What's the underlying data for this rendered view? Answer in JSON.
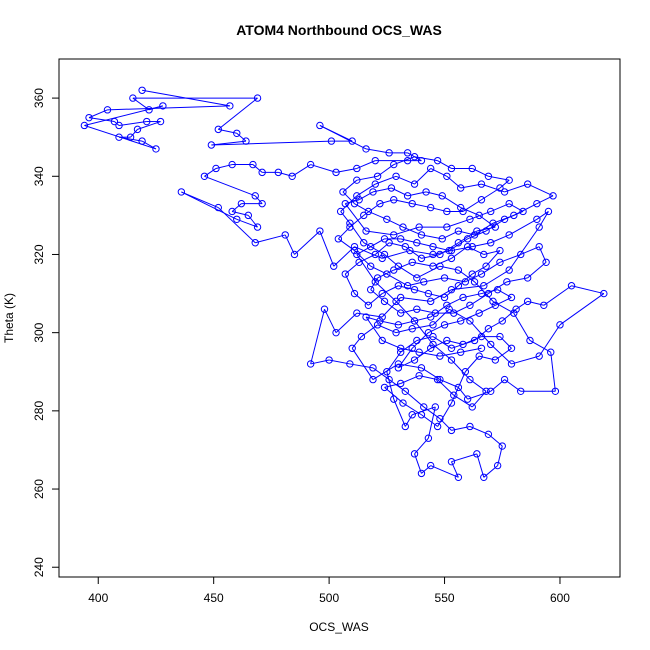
{
  "chart_data": {
    "type": "scatter",
    "title": "ATOM4 Northbound OCS_WAS",
    "xlabel": "OCS_WAS",
    "ylabel": "Theta (K)",
    "xlim": [
      383,
      626
    ],
    "ylim": [
      237.5,
      370
    ],
    "xticks": [
      400,
      450,
      500,
      550,
      600
    ],
    "yticks": [
      240,
      260,
      280,
      300,
      320,
      340,
      360
    ],
    "grid": false,
    "legend": "none",
    "color": "#0000ff",
    "marker": "open-circle",
    "connected": true,
    "series": [
      {
        "points": [
          [
            419,
            362
          ],
          [
            457,
            358
          ],
          [
            404,
            357
          ],
          [
            396,
            355
          ],
          [
            407,
            354
          ],
          [
            409,
            353
          ],
          [
            421,
            354
          ],
          [
            427,
            354
          ],
          [
            417,
            352
          ],
          [
            414,
            350
          ],
          [
            409,
            350
          ],
          [
            419,
            349
          ],
          [
            425,
            347
          ],
          [
            394,
            353
          ],
          [
            428,
            358
          ],
          [
            422,
            357
          ],
          [
            415,
            360
          ],
          [
            469,
            360
          ],
          [
            452,
            352
          ],
          [
            460,
            351
          ],
          [
            464,
            349
          ],
          [
            449,
            348
          ],
          [
            501,
            349
          ],
          [
            510,
            349
          ],
          [
            496,
            353
          ],
          [
            516,
            347
          ],
          [
            526,
            346
          ],
          [
            534,
            346
          ],
          [
            540,
            344
          ],
          [
            534,
            344
          ],
          [
            520,
            344
          ],
          [
            512,
            342
          ],
          [
            503,
            341
          ],
          [
            492,
            343
          ],
          [
            484,
            340
          ],
          [
            478,
            341
          ],
          [
            471,
            341
          ],
          [
            467,
            343
          ],
          [
            458,
            343
          ],
          [
            451,
            342
          ],
          [
            446,
            340
          ],
          [
            468,
            335
          ],
          [
            471,
            333
          ],
          [
            462,
            333
          ],
          [
            458,
            331
          ],
          [
            465,
            330
          ],
          [
            469,
            327
          ],
          [
            460,
            329
          ],
          [
            436,
            336
          ],
          [
            452,
            332
          ],
          [
            468,
            323
          ],
          [
            481,
            325
          ],
          [
            485,
            320
          ],
          [
            496,
            326
          ],
          [
            502,
            317
          ],
          [
            511,
            322
          ],
          [
            523,
            319
          ],
          [
            535,
            321
          ],
          [
            545,
            320
          ],
          [
            553,
            321
          ],
          [
            562,
            322
          ],
          [
            570,
            323
          ],
          [
            578,
            325
          ],
          [
            590,
            329
          ],
          [
            595,
            331
          ],
          [
            591,
            327
          ],
          [
            578,
            316
          ],
          [
            567,
            312
          ],
          [
            553,
            311
          ],
          [
            544,
            308
          ],
          [
            531,
            309
          ],
          [
            523,
            304
          ],
          [
            512,
            305
          ],
          [
            503,
            300
          ],
          [
            498,
            306
          ],
          [
            492,
            292
          ],
          [
            500,
            293
          ],
          [
            509,
            292
          ],
          [
            519,
            291
          ],
          [
            526,
            288
          ],
          [
            533,
            285
          ],
          [
            541,
            281
          ],
          [
            548,
            278
          ],
          [
            553,
            275
          ],
          [
            561,
            276
          ],
          [
            569,
            274
          ],
          [
            575,
            271
          ],
          [
            573,
            266
          ],
          [
            567,
            263
          ],
          [
            564,
            269
          ],
          [
            553,
            267
          ],
          [
            556,
            263
          ],
          [
            544,
            266
          ],
          [
            540,
            264
          ],
          [
            537,
            269
          ],
          [
            543,
            273
          ],
          [
            546,
            281
          ],
          [
            536,
            279
          ],
          [
            533,
            276
          ],
          [
            528,
            283
          ],
          [
            525,
            290
          ],
          [
            531,
            295
          ],
          [
            538,
            298
          ],
          [
            545,
            299
          ],
          [
            553,
            296
          ],
          [
            563,
            298
          ],
          [
            569,
            301
          ],
          [
            575,
            303
          ],
          [
            581,
            306
          ],
          [
            586,
            308
          ],
          [
            593,
            307
          ],
          [
            605,
            312
          ],
          [
            619,
            310
          ],
          [
            600,
            302
          ],
          [
            591,
            294
          ],
          [
            579,
            292
          ],
          [
            570,
            297
          ],
          [
            561,
            303
          ],
          [
            552,
            306
          ],
          [
            545,
            302
          ],
          [
            536,
            301
          ],
          [
            529,
            300
          ],
          [
            521,
            302
          ],
          [
            514,
            299
          ],
          [
            510,
            296
          ],
          [
            519,
            288
          ],
          [
            530,
            292
          ],
          [
            540,
            291
          ],
          [
            548,
            288
          ],
          [
            556,
            286
          ],
          [
            560,
            283
          ],
          [
            570,
            285
          ],
          [
            576,
            288
          ],
          [
            583,
            285
          ],
          [
            598,
            285
          ],
          [
            596,
            295
          ],
          [
            587,
            298
          ],
          [
            580,
            305
          ],
          [
            571,
            308
          ],
          [
            563,
            313
          ],
          [
            556,
            316
          ],
          [
            548,
            317
          ],
          [
            538,
            314
          ],
          [
            530,
            317
          ],
          [
            524,
            320
          ],
          [
            515,
            323
          ],
          [
            509,
            328
          ],
          [
            505,
            331
          ],
          [
            512,
            335
          ],
          [
            520,
            338
          ],
          [
            529,
            340
          ],
          [
            537,
            338
          ],
          [
            544,
            342
          ],
          [
            551,
            340
          ],
          [
            557,
            337
          ],
          [
            566,
            338
          ],
          [
            576,
            336
          ],
          [
            586,
            338
          ],
          [
            597,
            335
          ],
          [
            590,
            333
          ],
          [
            580,
            330
          ],
          [
            571,
            328
          ],
          [
            563,
            325
          ],
          [
            556,
            326
          ],
          [
            549,
            324
          ],
          [
            540,
            325
          ],
          [
            532,
            327
          ],
          [
            525,
            329
          ],
          [
            517,
            331
          ],
          [
            511,
            333
          ],
          [
            506,
            336
          ],
          [
            512,
            339
          ],
          [
            521,
            340
          ],
          [
            528,
            343
          ],
          [
            537,
            345
          ],
          [
            547,
            344
          ],
          [
            553,
            342
          ],
          [
            562,
            342
          ],
          [
            569,
            340
          ],
          [
            578,
            339
          ],
          [
            574,
            337
          ],
          [
            566,
            334
          ],
          [
            558,
            331
          ],
          [
            551,
            331
          ],
          [
            544,
            332
          ],
          [
            536,
            333
          ],
          [
            528,
            334
          ],
          [
            522,
            333
          ],
          [
            515,
            330
          ],
          [
            509,
            327
          ],
          [
            504,
            324
          ],
          [
            511,
            321
          ],
          [
            518,
            317
          ],
          [
            525,
            315
          ],
          [
            534,
            312
          ],
          [
            541,
            313
          ],
          [
            550,
            314
          ],
          [
            559,
            313
          ],
          [
            566,
            315
          ],
          [
            574,
            318
          ],
          [
            583,
            320
          ],
          [
            591,
            322
          ],
          [
            594,
            318
          ],
          [
            586,
            314
          ],
          [
            577,
            313
          ],
          [
            569,
            310
          ],
          [
            561,
            307
          ],
          [
            554,
            305
          ],
          [
            546,
            305
          ],
          [
            538,
            306
          ],
          [
            531,
            305
          ],
          [
            524,
            308
          ],
          [
            518,
            311
          ],
          [
            521,
            314
          ],
          [
            528,
            316
          ],
          [
            536,
            318
          ],
          [
            545,
            317
          ],
          [
            553,
            319
          ],
          [
            560,
            322
          ],
          [
            567,
            320
          ],
          [
            574,
            321
          ],
          [
            568,
            317
          ],
          [
            562,
            315
          ],
          [
            556,
            312
          ],
          [
            550,
            309
          ],
          [
            543,
            310
          ],
          [
            537,
            311
          ],
          [
            530,
            312
          ],
          [
            523,
            310
          ],
          [
            517,
            307
          ],
          [
            511,
            310
          ],
          [
            507,
            315
          ],
          [
            513,
            318
          ],
          [
            520,
            320
          ],
          [
            526,
            323
          ],
          [
            533,
            322
          ],
          [
            540,
            319
          ],
          [
            548,
            320
          ],
          [
            556,
            323
          ],
          [
            564,
            326
          ],
          [
            572,
            327
          ],
          [
            565,
            330
          ],
          [
            557,
            332
          ],
          [
            549,
            335
          ],
          [
            542,
            336
          ],
          [
            534,
            335
          ],
          [
            527,
            337
          ],
          [
            519,
            336
          ],
          [
            513,
            334
          ],
          [
            507,
            333
          ],
          [
            516,
            326
          ],
          [
            528,
            325
          ],
          [
            539,
            327
          ],
          [
            551,
            327
          ],
          [
            561,
            329
          ],
          [
            570,
            331
          ],
          [
            578,
            333
          ],
          [
            584,
            331
          ],
          [
            576,
            329
          ],
          [
            568,
            326
          ],
          [
            560,
            324
          ],
          [
            552,
            321
          ],
          [
            545,
            322
          ],
          [
            538,
            323
          ],
          [
            531,
            324
          ],
          [
            524,
            324
          ],
          [
            518,
            322
          ],
          [
            512,
            320
          ],
          [
            520,
            313
          ],
          [
            529,
            308
          ],
          [
            537,
            303
          ],
          [
            545,
            297
          ],
          [
            553,
            293
          ],
          [
            561,
            288
          ],
          [
            568,
            285
          ],
          [
            562,
            281
          ],
          [
            554,
            284
          ],
          [
            547,
            288
          ],
          [
            539,
            289
          ],
          [
            531,
            287
          ],
          [
            524,
            286
          ],
          [
            532,
            282
          ],
          [
            540,
            279
          ],
          [
            547,
            276
          ],
          [
            553,
            282
          ],
          [
            559,
            290
          ],
          [
            565,
            294
          ],
          [
            572,
            293
          ],
          [
            579,
            296
          ],
          [
            574,
            299
          ],
          [
            566,
            299
          ],
          [
            558,
            297
          ],
          [
            551,
            298
          ],
          [
            544,
            296
          ],
          [
            537,
            293
          ],
          [
            530,
            291
          ],
          [
            536,
            296
          ],
          [
            543,
            300
          ],
          [
            550,
            302
          ],
          [
            557,
            303
          ],
          [
            565,
            305
          ],
          [
            572,
            307
          ],
          [
            579,
            309
          ],
          [
            573,
            311
          ],
          [
            566,
            310
          ],
          [
            558,
            309
          ],
          [
            551,
            307
          ],
          [
            544,
            304
          ],
          [
            537,
            303
          ],
          [
            530,
            302
          ],
          [
            522,
            303
          ],
          [
            516,
            304
          ],
          [
            523,
            298
          ],
          [
            531,
            296
          ],
          [
            539,
            295
          ],
          [
            548,
            294
          ],
          [
            557,
            295
          ],
          [
            566,
            296
          ]
        ]
      }
    ]
  }
}
